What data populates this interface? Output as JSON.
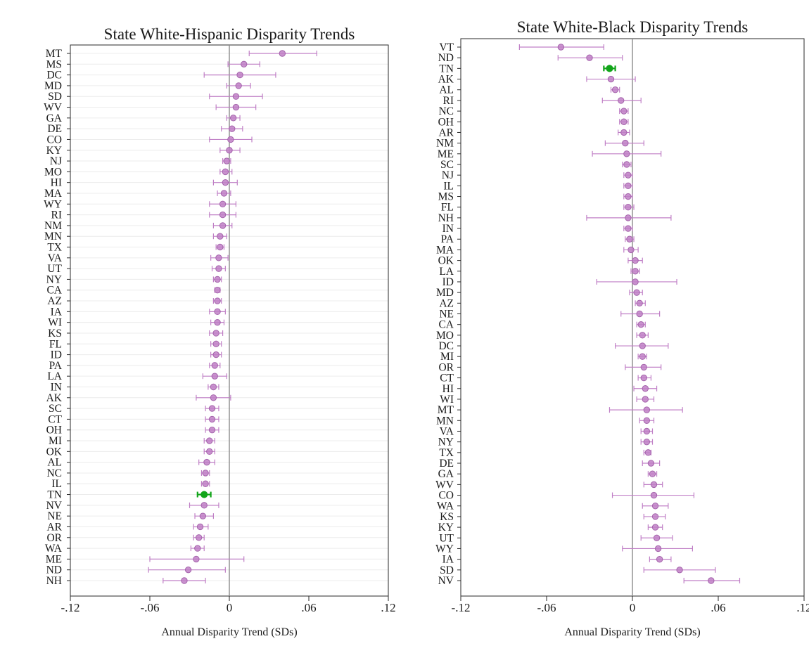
{
  "colors": {
    "point": "#c07fc6",
    "point_edge": "#a463ab",
    "highlight": "#12a51a",
    "zero_line": "#8c8c8c",
    "grid": "#ececec"
  },
  "chart_data": [
    {
      "type": "scatter",
      "title": "State White-Hispanic Disparity Trends",
      "xlabel": "Annual Disparity Trend (SDs)",
      "ylabel": "",
      "xlim": [
        -0.12,
        0.12
      ],
      "xticks": [
        -0.12,
        -0.06,
        0,
        0.06,
        0.12
      ],
      "xtick_labels": [
        "-.12",
        "-.06",
        "0",
        ".06",
        ".12"
      ],
      "highlight": "TN",
      "grid": true,
      "states": [
        "MT",
        "MS",
        "DC",
        "MD",
        "SD",
        "WV",
        "GA",
        "DE",
        "CO",
        "KY",
        "NJ",
        "MO",
        "HI",
        "MA",
        "WY",
        "RI",
        "NM",
        "MN",
        "TX",
        "VA",
        "UT",
        "NY",
        "CA",
        "AZ",
        "IA",
        "WI",
        "KS",
        "FL",
        "ID",
        "PA",
        "LA",
        "IN",
        "AK",
        "SC",
        "CT",
        "OH",
        "MI",
        "OK",
        "AL",
        "NC",
        "IL",
        "TN",
        "NV",
        "NE",
        "AR",
        "OR",
        "WA",
        "ME",
        "ND",
        "NH"
      ],
      "estimates": [
        0.04,
        0.011,
        0.008,
        0.007,
        0.005,
        0.005,
        0.003,
        0.002,
        0.001,
        0.0,
        -0.002,
        -0.003,
        -0.003,
        -0.004,
        -0.005,
        -0.005,
        -0.005,
        -0.007,
        -0.007,
        -0.008,
        -0.008,
        -0.009,
        -0.009,
        -0.009,
        -0.009,
        -0.009,
        -0.01,
        -0.01,
        -0.01,
        -0.011,
        -0.011,
        -0.012,
        -0.012,
        -0.013,
        -0.013,
        -0.013,
        -0.015,
        -0.015,
        -0.017,
        -0.018,
        -0.018,
        -0.019,
        -0.019,
        -0.02,
        -0.022,
        -0.023,
        -0.024,
        -0.025,
        -0.031,
        -0.034
      ],
      "ci_low": [
        0.015,
        -0.001,
        -0.019,
        -0.002,
        -0.015,
        -0.01,
        -0.002,
        -0.006,
        -0.015,
        -0.007,
        -0.005,
        -0.007,
        -0.012,
        -0.009,
        -0.015,
        -0.015,
        -0.012,
        -0.012,
        -0.01,
        -0.014,
        -0.013,
        -0.012,
        -0.011,
        -0.012,
        -0.015,
        -0.014,
        -0.015,
        -0.014,
        -0.014,
        -0.015,
        -0.02,
        -0.016,
        -0.025,
        -0.018,
        -0.018,
        -0.018,
        -0.019,
        -0.019,
        -0.023,
        -0.021,
        -0.021,
        -0.024,
        -0.03,
        -0.026,
        -0.027,
        -0.027,
        -0.029,
        -0.06,
        -0.061,
        -0.05
      ],
      "ci_high": [
        0.066,
        0.023,
        0.035,
        0.016,
        0.025,
        0.02,
        0.008,
        0.01,
        0.017,
        0.008,
        0.001,
        0.002,
        0.006,
        0.001,
        0.005,
        0.005,
        0.002,
        -0.002,
        -0.004,
        -0.001,
        -0.003,
        -0.006,
        -0.007,
        -0.006,
        -0.003,
        -0.004,
        -0.005,
        -0.006,
        -0.006,
        -0.007,
        -0.002,
        -0.008,
        0.001,
        -0.008,
        -0.008,
        -0.008,
        -0.011,
        -0.011,
        -0.011,
        -0.015,
        -0.015,
        -0.014,
        -0.008,
        -0.012,
        -0.016,
        -0.019,
        -0.019,
        0.011,
        -0.003,
        -0.018
      ]
    },
    {
      "type": "scatter",
      "title": "State White-Black Disparity Trends",
      "xlabel": "Annual Disparity Trend (SDs)",
      "ylabel": "",
      "xlim": [
        -0.12,
        0.12
      ],
      "xticks": [
        -0.12,
        -0.06,
        0,
        0.06,
        0.12
      ],
      "xtick_labels": [
        "-.12",
        "-.06",
        "0",
        ".06",
        ".12"
      ],
      "highlight": "TN",
      "grid": false,
      "states": [
        "VT",
        "ND",
        "TN",
        "AK",
        "AL",
        "RI",
        "NC",
        "OH",
        "AR",
        "NM",
        "ME",
        "SC",
        "NJ",
        "IL",
        "MS",
        "FL",
        "NH",
        "IN",
        "PA",
        "MA",
        "OK",
        "LA",
        "ID",
        "MD",
        "AZ",
        "NE",
        "CA",
        "MO",
        "DC",
        "MI",
        "OR",
        "CT",
        "HI",
        "WI",
        "MT",
        "MN",
        "VA",
        "NY",
        "TX",
        "DE",
        "GA",
        "WV",
        "CO",
        "WA",
        "KS",
        "KY",
        "UT",
        "WY",
        "IA",
        "SD",
        "NV"
      ],
      "estimates": [
        -0.05,
        -0.03,
        -0.016,
        -0.015,
        -0.012,
        -0.008,
        -0.006,
        -0.006,
        -0.006,
        -0.005,
        -0.004,
        -0.004,
        -0.003,
        -0.003,
        -0.003,
        -0.003,
        -0.003,
        -0.003,
        -0.002,
        -0.001,
        0.002,
        0.002,
        0.002,
        0.003,
        0.005,
        0.005,
        0.006,
        0.007,
        0.007,
        0.007,
        0.008,
        0.008,
        0.009,
        0.009,
        0.01,
        0.01,
        0.01,
        0.01,
        0.011,
        0.013,
        0.014,
        0.015,
        0.015,
        0.016,
        0.016,
        0.016,
        0.017,
        0.018,
        0.019,
        0.033,
        0.055
      ],
      "ci_low": [
        -0.079,
        -0.052,
        -0.02,
        -0.032,
        -0.015,
        -0.021,
        -0.009,
        -0.009,
        -0.01,
        -0.019,
        -0.028,
        -0.007,
        -0.006,
        -0.006,
        -0.006,
        -0.006,
        -0.032,
        -0.006,
        -0.005,
        -0.006,
        -0.003,
        -0.001,
        -0.025,
        -0.002,
        0.002,
        -0.008,
        0.003,
        0.003,
        -0.012,
        0.004,
        -0.005,
        0.004,
        0.001,
        0.003,
        -0.016,
        0.005,
        0.006,
        0.006,
        0.008,
        0.007,
        0.011,
        0.008,
        -0.014,
        0.007,
        0.008,
        0.011,
        0.006,
        -0.007,
        0.012,
        0.008,
        0.036
      ],
      "ci_high": [
        -0.02,
        -0.007,
        -0.012,
        0.002,
        -0.009,
        0.006,
        -0.003,
        -0.003,
        -0.002,
        0.008,
        0.02,
        -0.001,
        0.0,
        0.0,
        0.0,
        0.001,
        0.027,
        0.0,
        0.001,
        0.004,
        0.007,
        0.005,
        0.031,
        0.007,
        0.009,
        0.019,
        0.009,
        0.011,
        0.025,
        0.01,
        0.02,
        0.013,
        0.017,
        0.015,
        0.035,
        0.015,
        0.014,
        0.014,
        0.013,
        0.019,
        0.017,
        0.021,
        0.043,
        0.025,
        0.023,
        0.021,
        0.028,
        0.042,
        0.027,
        0.058,
        0.075
      ]
    }
  ]
}
